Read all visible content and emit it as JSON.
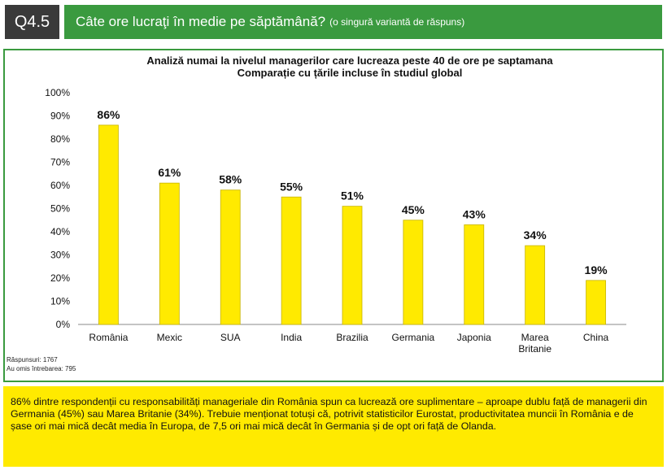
{
  "header": {
    "question_id": "Q4.5",
    "question": "Câte ore lucraţi în medie pe săptămână?",
    "question_note": "(o singură variantă de răspuns)"
  },
  "chart_data": {
    "type": "bar",
    "title": "Analiză numai la nivelul managerilor care lucreaza peste 40 de ore pe saptamana",
    "subtitle": "Comparație cu țările incluse în studiul global",
    "categories": [
      "România",
      "Mexic",
      "SUA",
      "India",
      "Brazilia",
      "Germania",
      "Japonia",
      "Marea Britanie",
      "China"
    ],
    "values": [
      86,
      61,
      58,
      55,
      51,
      45,
      43,
      34,
      19
    ],
    "data_labels": [
      "86%",
      "61%",
      "58%",
      "55%",
      "51%",
      "45%",
      "43%",
      "34%",
      "19%"
    ],
    "y_ticks": [
      "0%",
      "10%",
      "20%",
      "30%",
      "40%",
      "50%",
      "60%",
      "70%",
      "80%",
      "90%",
      "100%"
    ],
    "ylim": [
      0,
      100
    ],
    "xlabel": "",
    "ylabel": "",
    "grid": false,
    "bar_color": "#ffea00",
    "bar_edge_color": "#c8b400"
  },
  "notes": {
    "responses": "Răspunsuri: 1767",
    "omitted": "Au omis întrebarea: 795"
  },
  "footer": {
    "text": "86% dintre respondenții cu responsabilități manageriale din România spun ca lucrează ore suplimentare – aproape dublu față de managerii din Germania (45%) sau Marea Britanie (34%). Trebuie menționat totuși că, potrivit statisticilor Eurostat, productivitatea muncii în România e de șase ori mai mică decât media în Europa, de 7,5 ori mai mică decât în Germania și de opt ori față de Olanda."
  },
  "colors": {
    "header_green": "#3a9a3f",
    "badge_dark": "#3a3a3a",
    "footer_yellow": "#ffea00"
  }
}
